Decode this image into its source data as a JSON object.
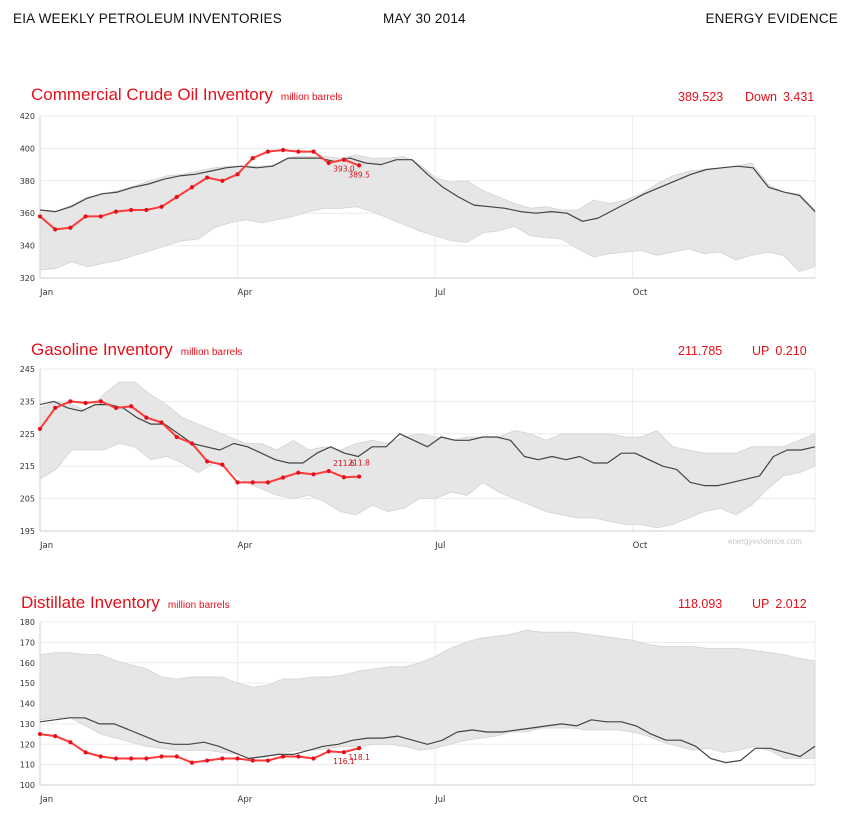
{
  "header": {
    "left": "EIA WEEKLY PETROLEUM INVENTORIES",
    "center": "MAY 30 2014",
    "right": "ENERGY EVIDENCE"
  },
  "watermark": "energyevidence.com",
  "colors": {
    "accent": "#e3101c",
    "band": "#e6e6e6",
    "avg_line": "#444444",
    "grid": "#ececec"
  },
  "chart_data": [
    {
      "type": "line",
      "title": "Commercial Crude Oil Inventory",
      "unit": "million barrels",
      "value": "389.523",
      "change_dir": "Down",
      "change": "3.431",
      "ylim": [
        320,
        420
      ],
      "yticks": [
        320,
        340,
        360,
        380,
        400,
        420
      ],
      "xlim": [
        1,
        52
      ],
      "xticks": [
        {
          "label": "Jan",
          "week": 1
        },
        {
          "label": "Apr",
          "week": 14
        },
        {
          "label": "Jul",
          "week": 27
        },
        {
          "label": "Oct",
          "week": 40
        }
      ],
      "grid": true,
      "range_upper": [
        362,
        361,
        365,
        370,
        372,
        374,
        377,
        380,
        383,
        384,
        386,
        388,
        389,
        389,
        389,
        390,
        395,
        395,
        395,
        394,
        396,
        394,
        394,
        395,
        390,
        382,
        379,
        380,
        374,
        370,
        366,
        363,
        364,
        362,
        362,
        368,
        366,
        368,
        372,
        378,
        383,
        386,
        387,
        388,
        389,
        391,
        378,
        373,
        372,
        362
      ],
      "range_lower": [
        325,
        326,
        330,
        327,
        329,
        331,
        334,
        337,
        340,
        343,
        344,
        351,
        354,
        356,
        354,
        356,
        358,
        361,
        363,
        363,
        364,
        361,
        357,
        353,
        349,
        346,
        343,
        342,
        348,
        349,
        352,
        346,
        345,
        344,
        338,
        333,
        335,
        336,
        337,
        334,
        336,
        338,
        335,
        336,
        331,
        334,
        336,
        334,
        324,
        327
      ],
      "average": [
        362,
        361,
        364,
        369,
        372,
        373,
        376,
        378,
        381,
        383,
        384,
        386,
        388,
        389,
        388,
        389,
        394,
        394,
        394,
        392,
        394,
        391,
        390,
        393,
        393,
        384,
        376,
        370,
        365,
        364,
        363,
        361,
        360,
        361,
        360,
        355,
        357,
        362,
        367,
        372,
        376,
        380,
        384,
        387,
        388,
        389,
        388,
        376,
        373,
        371,
        361
      ],
      "series_2014": [
        358,
        350,
        351,
        358,
        358,
        361,
        362,
        362,
        364,
        370,
        376,
        382,
        380,
        384,
        394,
        398,
        399,
        398,
        398,
        391,
        393,
        389.5
      ],
      "data_labels": [
        {
          "week": 21,
          "text": "393.0"
        },
        {
          "week": 22,
          "text": "389.5"
        }
      ]
    },
    {
      "type": "line",
      "title": "Gasoline Inventory",
      "unit": "million barrels",
      "value": "211.785",
      "change_dir": "UP",
      "change": "0.210",
      "ylim": [
        195,
        245
      ],
      "yticks": [
        195,
        205,
        215,
        225,
        235,
        245
      ],
      "xlim": [
        1,
        52
      ],
      "xticks": [
        {
          "label": "Jan",
          "week": 1
        },
        {
          "label": "Apr",
          "week": 14
        },
        {
          "label": "Jul",
          "week": 27
        },
        {
          "label": "Oct",
          "week": 40
        }
      ],
      "grid": true,
      "range_upper": [
        233,
        235,
        234,
        232,
        237,
        241,
        241,
        237,
        234,
        230,
        228,
        226,
        224,
        222,
        222,
        220,
        223,
        220,
        221,
        220,
        222,
        223,
        222,
        224,
        225,
        224,
        223,
        224,
        224,
        224,
        226,
        225,
        223,
        225,
        225,
        225,
        225,
        224,
        224,
        226,
        221,
        220,
        219,
        219,
        219,
        221,
        221,
        221,
        223,
        225
      ],
      "range_lower": [
        211,
        214,
        220,
        220,
        220,
        222,
        221,
        217,
        218,
        216,
        213,
        216,
        214,
        210,
        208,
        206,
        205,
        206,
        204,
        201,
        200,
        203,
        201,
        202,
        205,
        205,
        207,
        206,
        210,
        207,
        205,
        203,
        201,
        200,
        199,
        199,
        198,
        197,
        197,
        196,
        197,
        199,
        201,
        202,
        200,
        203,
        208,
        212,
        213,
        215
      ],
      "average": [
        234,
        235,
        233,
        232,
        234,
        234,
        233,
        230,
        228,
        228,
        225,
        222,
        221,
        220,
        222,
        221,
        219,
        217,
        216,
        216,
        219,
        221,
        219,
        218,
        221,
        221,
        225,
        223,
        221,
        224,
        223,
        223,
        224,
        224,
        223,
        218,
        217,
        218,
        217,
        218,
        216,
        216,
        219,
        219,
        217,
        215,
        214,
        210,
        209,
        209,
        210,
        211,
        212,
        218,
        220,
        220,
        221
      ],
      "series_2014": [
        226.5,
        233,
        235,
        234.5,
        235,
        233,
        233.5,
        230,
        228.5,
        224,
        222,
        216.5,
        215.5,
        210,
        210,
        210,
        211.5,
        213,
        212.5,
        213.5,
        211.6,
        211.8
      ],
      "data_labels": [
        {
          "week": 21,
          "text": "211.6"
        },
        {
          "week": 22,
          "text": "211.8"
        }
      ]
    },
    {
      "type": "line",
      "title": "Distillate Inventory",
      "unit": "million barrels",
      "value": "118.093",
      "change_dir": "UP",
      "change": "2.012",
      "ylim": [
        100,
        180
      ],
      "yticks": [
        100,
        110,
        120,
        130,
        140,
        150,
        160,
        170,
        180
      ],
      "xlim": [
        1,
        52
      ],
      "xticks": [
        {
          "label": "Jan",
          "week": 1
        },
        {
          "label": "Apr",
          "week": 14
        },
        {
          "label": "Jul",
          "week": 27
        },
        {
          "label": "Oct",
          "week": 40
        }
      ],
      "grid": true,
      "range_upper": [
        164,
        165,
        165,
        164,
        164,
        161,
        159,
        157,
        153,
        152,
        153,
        153,
        153,
        150,
        148,
        149,
        152,
        152,
        153,
        153,
        154,
        156,
        157,
        158,
        158,
        160,
        163,
        167,
        170,
        172,
        173,
        174,
        176,
        175,
        175,
        175,
        174,
        173,
        172,
        171,
        169,
        168,
        168,
        168,
        167,
        167,
        167,
        166,
        165,
        164,
        162,
        161
      ],
      "range_lower": [
        132,
        133,
        133,
        129,
        125,
        123,
        121,
        119,
        118,
        117,
        117,
        117,
        116,
        115,
        113,
        114,
        116,
        117,
        117,
        118,
        119,
        119,
        120,
        120,
        119,
        117,
        118,
        120,
        122,
        123,
        124,
        126,
        126,
        128,
        128,
        128,
        127,
        127,
        127,
        126,
        124,
        121,
        119,
        117,
        118,
        116,
        117,
        119,
        117,
        113,
        113,
        113
      ],
      "average": [
        131,
        132,
        133,
        133,
        130,
        130,
        127,
        124,
        121,
        120,
        120,
        121,
        119,
        116,
        113,
        114,
        115,
        115,
        117,
        119,
        120,
        122,
        123,
        123,
        124,
        122,
        120,
        122,
        126,
        127,
        126,
        126,
        127,
        128,
        129,
        130,
        129,
        132,
        131,
        131,
        129,
        125,
        122,
        122,
        119,
        113,
        111,
        112,
        118,
        118,
        116,
        114,
        119
      ],
      "series_2014": [
        125,
        124,
        121,
        116,
        114,
        113,
        113,
        113,
        114,
        114,
        111,
        112,
        113,
        113,
        112,
        112,
        114,
        114,
        113,
        116.5,
        116.1,
        118.1
      ],
      "data_labels": [
        {
          "week": 21,
          "text": "116.1"
        },
        {
          "week": 22,
          "text": "118.1"
        }
      ]
    }
  ]
}
